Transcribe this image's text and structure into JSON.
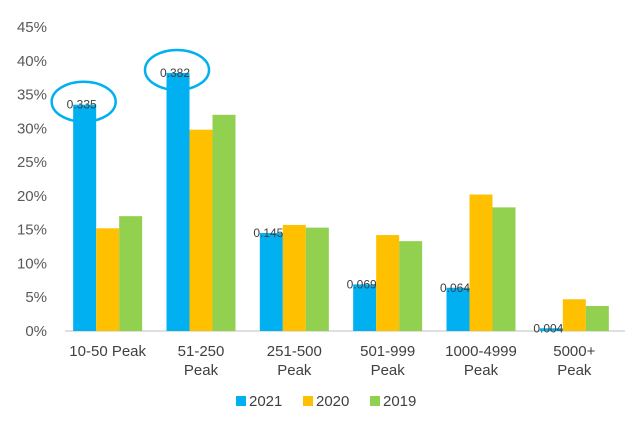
{
  "chart_data": {
    "type": "bar",
    "categories": [
      [
        "10-50 Peak"
      ],
      [
        "51-250",
        "Peak"
      ],
      [
        "251-500",
        "Peak"
      ],
      [
        "501-999",
        "Peak"
      ],
      [
        "1000-4999",
        "Peak"
      ],
      [
        "5000+",
        "Peak"
      ]
    ],
    "series": [
      {
        "name": "2021",
        "color": "#00B0F0",
        "values": [
          0.335,
          0.382,
          0.145,
          0.069,
          0.064,
          0.004
        ]
      },
      {
        "name": "2020",
        "color": "#FFC000",
        "values": [
          0.152,
          0.298,
          0.157,
          0.142,
          0.202,
          0.047
        ]
      },
      {
        "name": "2019",
        "color": "#92D050",
        "values": [
          0.17,
          0.32,
          0.153,
          0.133,
          0.183,
          0.037
        ]
      }
    ],
    "data_labels": {
      "series": "2021",
      "values": [
        "0.335",
        "0.382",
        "0.145",
        "0.069",
        "0.064",
        "0.004"
      ]
    },
    "highlighted_categories": [
      "10-50 Peak",
      "51-250 Peak"
    ],
    "highlight_color": "#00B0F0",
    "y_ticks": [
      "0%",
      "5%",
      "10%",
      "15%",
      "20%",
      "25%",
      "30%",
      "35%",
      "40%",
      "45%"
    ],
    "ylim": [
      0,
      0.45
    ],
    "title": "",
    "xlabel": "",
    "ylabel": "",
    "grid": false,
    "legend_position": "bottom"
  }
}
